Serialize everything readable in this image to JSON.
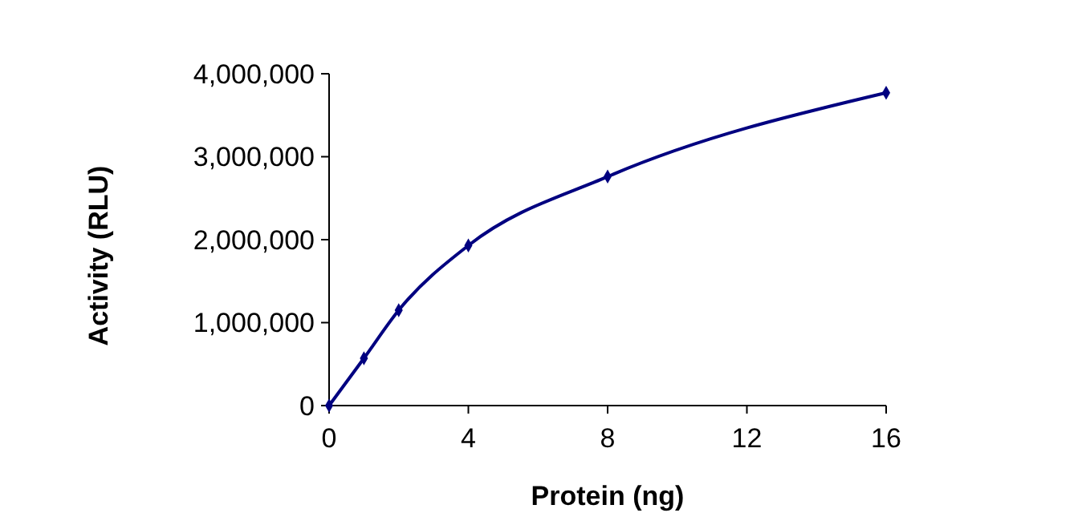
{
  "chart_data": {
    "type": "line",
    "xlabel": "Protein (ng)",
    "ylabel": "Activity (RLU)",
    "x": [
      0,
      1,
      2,
      4,
      8,
      16
    ],
    "series": [
      {
        "color": "#000080",
        "values": [
          0,
          570000,
          1150000,
          1930000,
          2760000,
          3770000
        ]
      }
    ],
    "xlim": [
      0,
      16
    ],
    "xticks": [
      0,
      4,
      8,
      12,
      16
    ],
    "ylim": [
      0,
      4000000
    ],
    "yticks": [
      {
        "value": 0,
        "label": "0"
      },
      {
        "value": 1000000,
        "label": "1,000,000"
      },
      {
        "value": 2000000,
        "label": "2,000,000"
      },
      {
        "value": 3000000,
        "label": "3,000,000"
      },
      {
        "value": 4000000,
        "label": "4,000,000"
      }
    ],
    "marker": "diamond",
    "line_style": "solid"
  }
}
